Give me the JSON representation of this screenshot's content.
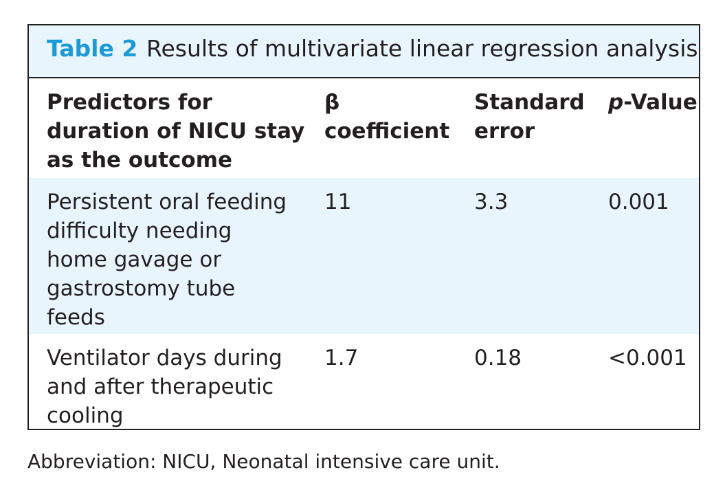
{
  "table": {
    "label": "Table 2",
    "title": "Results of multivariate linear regression analysis",
    "header": {
      "predictor": [
        "Predictors for",
        "duration of NICU stay",
        "as the outcome"
      ],
      "beta": [
        "β",
        "coefficient"
      ],
      "se": [
        "Standard",
        "error"
      ],
      "p_italic": "p",
      "p_rest": "-Value"
    },
    "rows": [
      {
        "predictor": [
          "Persistent oral feeding",
          "difficulty needing",
          "home gavage or",
          "gastrostomy tube",
          "feeds"
        ],
        "beta": "11",
        "se": "3.3",
        "p": "0.001"
      },
      {
        "predictor": [
          "Ventilator days during",
          "and after therapeutic",
          "cooling"
        ],
        "beta": "1.7",
        "se": "0.18",
        "p": "<0.001"
      }
    ]
  },
  "footnote": "Abbreviation: NICU, Neonatal intensive care unit.",
  "colors": {
    "accent": "#1a9ad6",
    "band": "#e9f5fd",
    "text": "#231f20"
  }
}
